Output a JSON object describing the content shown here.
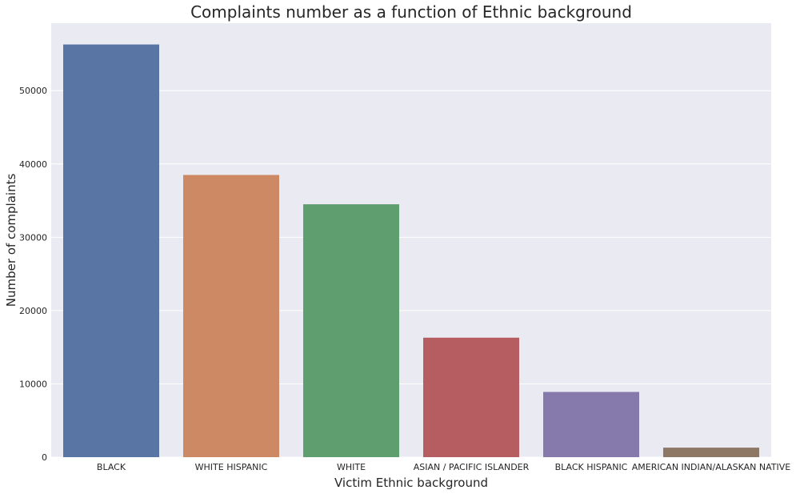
{
  "chart_data": {
    "type": "bar",
    "title": "Complaints number as a function of Ethnic background",
    "xlabel": "Victim Ethnic background",
    "ylabel": "Number of complaints",
    "categories": [
      "BLACK",
      "WHITE HISPANIC",
      "WHITE",
      "ASIAN / PACIFIC ISLANDER",
      "BLACK HISPANIC",
      "AMERICAN INDIAN/ALASKAN NATIVE"
    ],
    "values": [
      56300,
      38500,
      34500,
      16300,
      8900,
      1300
    ],
    "colors": [
      "#5875a4",
      "#cc8963",
      "#5f9e6e",
      "#b55d60",
      "#857aab",
      "#8d7866"
    ],
    "yticks": [
      0,
      10000,
      20000,
      30000,
      40000,
      50000
    ],
    "ytick_labels": [
      "0",
      "10000",
      "20000",
      "30000",
      "40000",
      "50000"
    ],
    "ylim": [
      0,
      59200
    ],
    "grid": true,
    "background": "#eaeaf2"
  }
}
